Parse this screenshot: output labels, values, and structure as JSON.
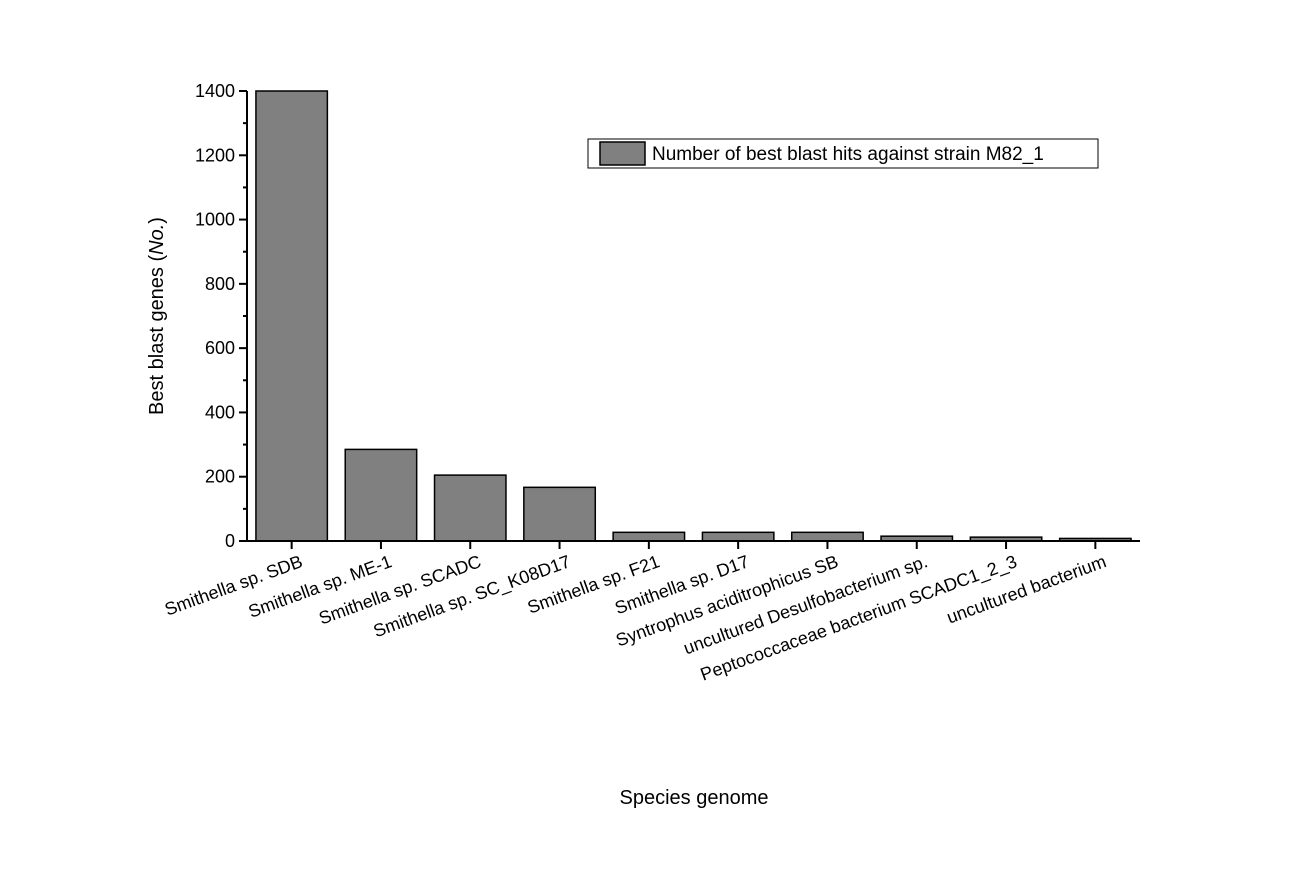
{
  "chart_data": {
    "type": "bar",
    "title": "",
    "xlabel": "Species genome",
    "ylabel_prefix": "Best blast genes (",
    "ylabel_italic": "No.",
    "ylabel_suffix": ")",
    "categories": [
      "Smithella sp. SDB",
      "Smithella sp. ME-1",
      "Smithella sp. SCADC",
      "Smithella sp. SC_K08D17",
      "Smithella sp. F21",
      "Smithella sp. D17",
      "Syntrophus aciditrophicus SB",
      "uncultured Desulfobacterium sp.",
      "Peptococcaceae bacterium SCADC1_2_3",
      "uncultured bacterium"
    ],
    "series": [
      {
        "name": "Number of best blast hits against strain M82_1",
        "values": [
          1400,
          285,
          205,
          167,
          27,
          27,
          27,
          15,
          12,
          8
        ]
      }
    ],
    "ylim": [
      0,
      1400
    ],
    "yticks": [
      0,
      200,
      400,
      600,
      800,
      1000,
      1200,
      1400
    ],
    "yticks_minor": [
      100,
      300,
      500,
      700,
      900,
      1100,
      1300
    ],
    "grid": false,
    "legend_position": "top-right",
    "colors": {
      "bar_fill": "#808080",
      "bar_stroke": "#000000"
    }
  }
}
